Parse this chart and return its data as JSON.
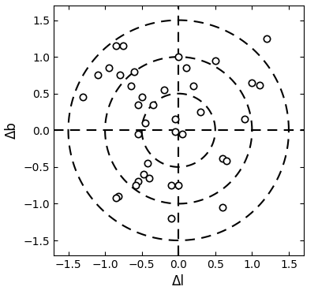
{
  "title": "",
  "xlabel": "Δl",
  "ylabel": "Δb",
  "xlim": [
    -1.7,
    1.7
  ],
  "ylim": [
    -1.7,
    1.7
  ],
  "xticks": [
    -1.5,
    -1.0,
    -0.5,
    0.0,
    0.5,
    1.0,
    1.5
  ],
  "yticks": [
    -1.5,
    -1.0,
    -0.5,
    0.0,
    0.5,
    1.0,
    1.5
  ],
  "circle_radii": [
    0.5,
    1.0,
    1.5
  ],
  "points_x": [
    -0.85,
    -0.75,
    -0.95,
    -0.6,
    -1.1,
    -0.8,
    -1.3,
    -0.5,
    -0.55,
    -0.35,
    -0.65,
    -0.2,
    -0.45,
    -0.05,
    -0.55,
    -0.42,
    -0.48,
    -0.4,
    -0.55,
    -0.58,
    -0.82,
    -0.85,
    -0.05,
    0.05,
    -0.1,
    0.0,
    0.0,
    0.1,
    0.2,
    0.3,
    0.6,
    0.65,
    0.6,
    0.9,
    1.0,
    1.1,
    1.2,
    0.5,
    -0.1
  ],
  "points_y": [
    1.15,
    1.15,
    0.85,
    0.8,
    0.75,
    0.75,
    0.45,
    0.45,
    0.35,
    0.35,
    0.6,
    0.55,
    0.1,
    0.15,
    -0.05,
    -0.45,
    -0.6,
    -0.65,
    -0.7,
    -0.75,
    -0.9,
    -0.92,
    -0.02,
    -0.05,
    -0.75,
    -0.75,
    1.0,
    0.85,
    0.6,
    0.25,
    -0.38,
    -0.42,
    -1.05,
    0.15,
    0.65,
    0.62,
    1.25,
    0.95,
    -1.2
  ],
  "marker_size": 6,
  "marker_color": "black",
  "marker_facecolor": "white",
  "dash_on": 6,
  "dash_off": 4,
  "linewidth": 1.5,
  "background_color": "white",
  "tick_direction": "in",
  "font_size": 12
}
